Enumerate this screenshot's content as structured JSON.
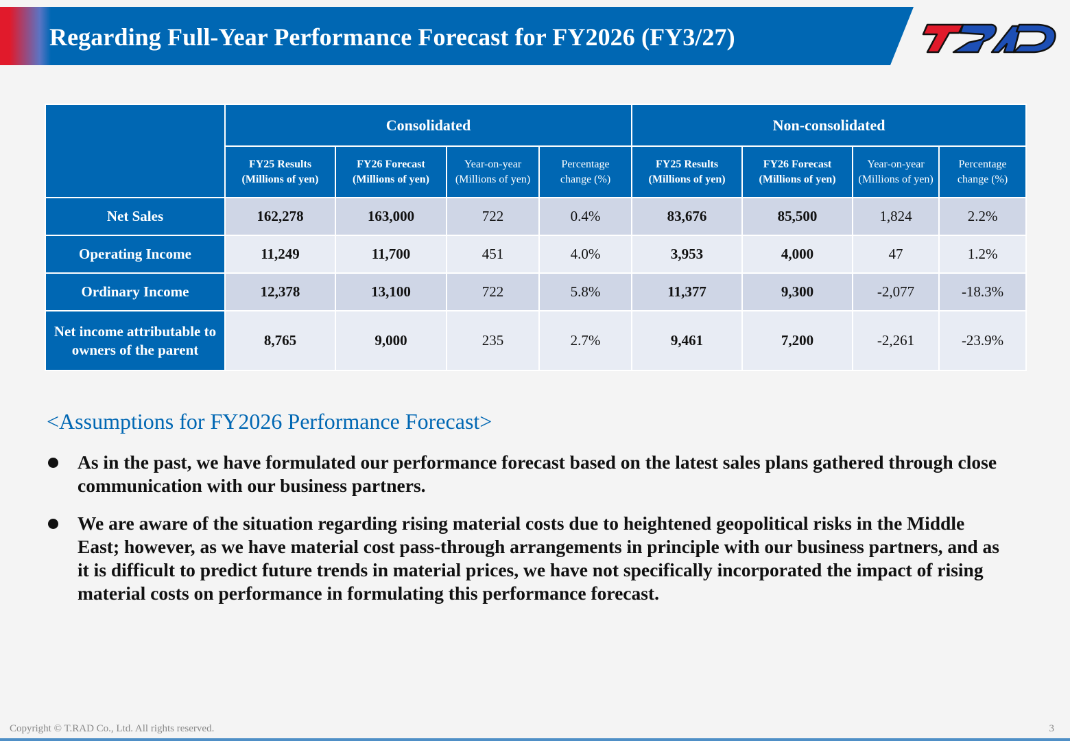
{
  "header": {
    "title": "Regarding Full-Year Performance Forecast for FY2026 (FY3/27)",
    "logo_text": "T.RAD"
  },
  "table": {
    "groups": [
      "Consolidated",
      "Non-consolidated"
    ],
    "subheaders": [
      {
        "line1": "FY25 Results",
        "line2": "(Millions of yen)"
      },
      {
        "line1": "FY26 Forecast",
        "line2": "(Millions of yen)"
      },
      {
        "line1": "Year-on-year",
        "line2": "(Millions of yen)"
      },
      {
        "line1": "Percentage",
        "line2": "change (%)"
      },
      {
        "line1": "FY25 Results",
        "line2": "(Millions of yen)"
      },
      {
        "line1": "FY26 Forecast",
        "line2": "(Millions of yen)"
      },
      {
        "line1": "Year-on-year",
        "line2": "(Millions of yen)"
      },
      {
        "line1": "Percentage",
        "line2": "change (%)"
      }
    ],
    "rows": [
      {
        "label_1": "Net Sales",
        "label_2": "",
        "cells": [
          "162,278",
          "163,000",
          "722",
          "0.4%",
          "83,676",
          "85,500",
          "1,824",
          "2.2%"
        ]
      },
      {
        "label_1": "Operating Income",
        "label_2": "",
        "cells": [
          "11,249",
          "11,700",
          "451",
          "4.0%",
          "3,953",
          "4,000",
          "47",
          "1.2%"
        ]
      },
      {
        "label_1": "Ordinary Income",
        "label_2": "",
        "cells": [
          "12,378",
          "13,100",
          "722",
          "5.8%",
          "11,377",
          "9,300",
          "-2,077",
          "-18.3%"
        ]
      },
      {
        "label_1": "Net income attributable to",
        "label_2": "owners of the parent",
        "cells": [
          "8,765",
          "9,000",
          "235",
          "2.7%",
          "9,461",
          "7,200",
          "-2,261",
          "-23.9%"
        ]
      }
    ]
  },
  "assumptions": {
    "title": "<Assumptions for FY2026 Performance Forecast>",
    "bullets": [
      "As in the past, we have formulated our performance forecast based on the latest sales plans gathered through close communication with our business partners.",
      "We are aware of the situation regarding rising material costs due to heightened geopolitical risks in the Middle East; however, as we have material cost pass-through arrangements in principle with our business partners, and as it is difficult to predict future trends in material prices, we have not specifically incorporated the impact of rising material costs on performance in formulating this performance forecast."
    ]
  },
  "footer": {
    "copyright": "Copyright © T.RAD Co., Ltd. All rights reserved.",
    "page_number": "3"
  },
  "colors": {
    "brand_blue": "#0067b3",
    "brand_red": "#e11a2b",
    "row_dark": "#cfd6e6",
    "row_light": "#e8ecf4"
  }
}
